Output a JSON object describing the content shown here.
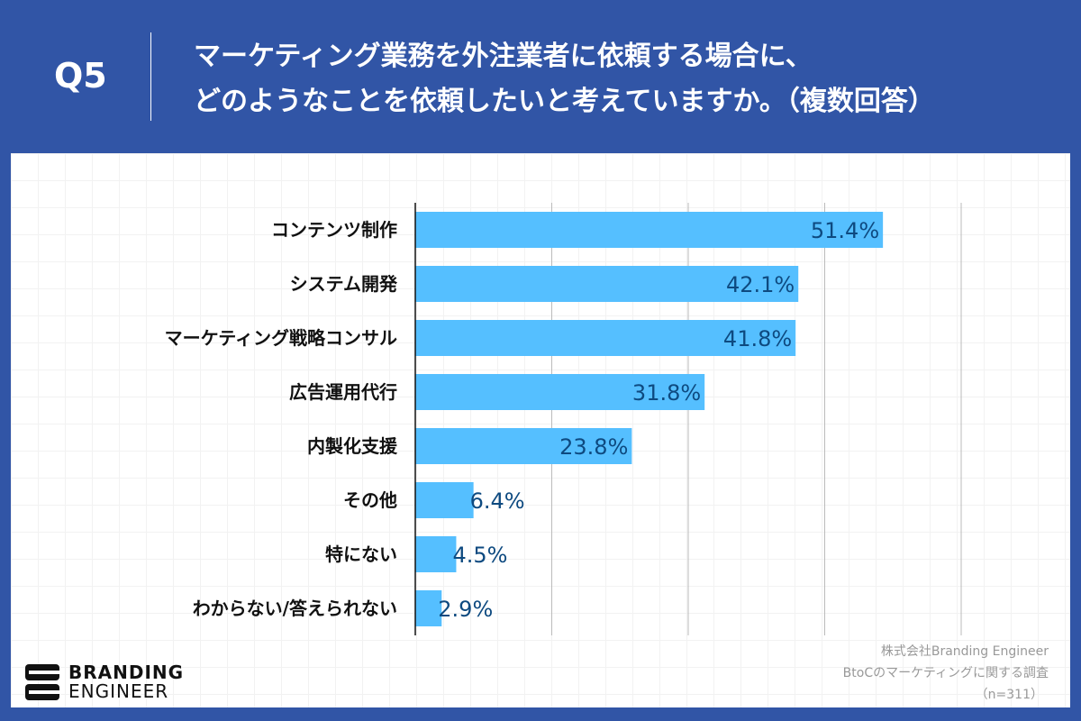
{
  "header": {
    "q": "Q5",
    "title_line1": "マーケティング業務を外注業者に依頼する場合に、",
    "title_line2": "どのようなことを依頼したいと考えていますか。（複数回答）"
  },
  "chart_data": {
    "type": "bar",
    "orientation": "horizontal",
    "categories": [
      "コンテンツ制作",
      "システム開発",
      "マーケティング戦略コンサル",
      "広告運用代行",
      "内製化支援",
      "その他",
      "特にない",
      "わからない/答えられない"
    ],
    "values": [
      51.4,
      42.1,
      41.8,
      31.8,
      23.8,
      6.4,
      4.5,
      2.9
    ],
    "labels": [
      "51.4%",
      "42.1%",
      "41.8%",
      "31.8%",
      "23.8%",
      "6.4%",
      "4.5%",
      "2.9%"
    ],
    "xlim": [
      0,
      60
    ],
    "grid": true,
    "grid_step": 15,
    "bar_color": "#55bfff",
    "label_color": "#0e4a80"
  },
  "footer": {
    "source1": "株式会社Branding Engineer",
    "source2": "BtoCのマーケティングに関する調査",
    "n": "（n=311）",
    "logo_line1": "BRANDING",
    "logo_line2": "ENGINEER"
  }
}
